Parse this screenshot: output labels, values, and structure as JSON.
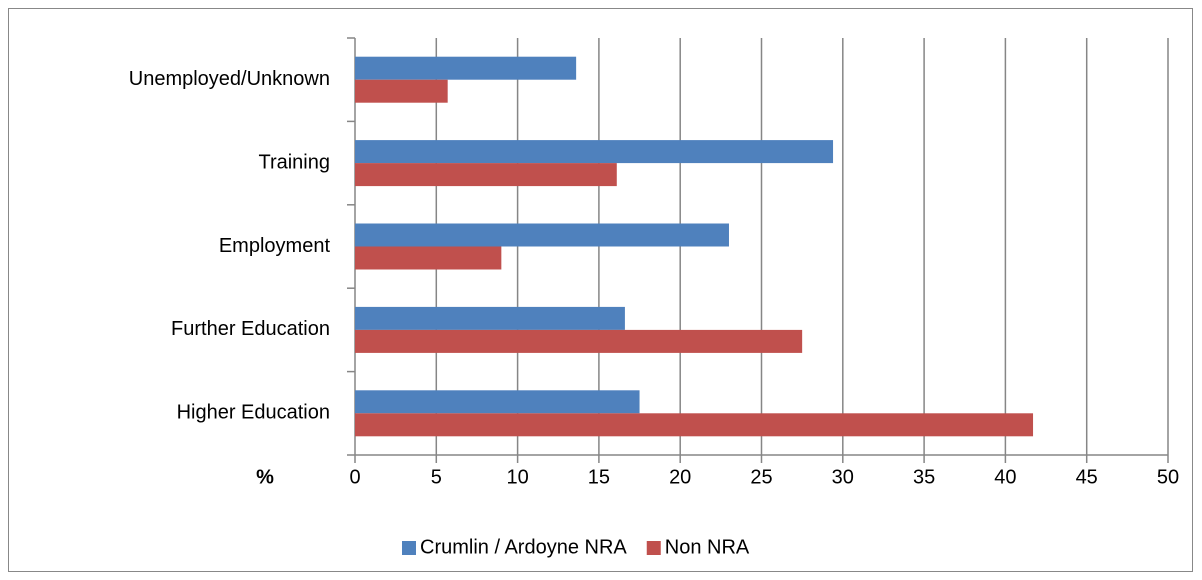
{
  "chart_data": {
    "type": "bar",
    "orientation": "horizontal",
    "categories": [
      "Unemployed/Unknown",
      "Training",
      "Employment",
      "Further Education",
      "Higher Education"
    ],
    "series": [
      {
        "name": "Crumlin / Ardoyne NRA",
        "color": "#4f81bd",
        "values": [
          13.6,
          29.4,
          23.0,
          16.6,
          17.5
        ]
      },
      {
        "name": "Non NRA",
        "color": "#c0504d",
        "values": [
          5.7,
          16.1,
          9.0,
          27.5,
          41.7
        ]
      }
    ],
    "x_label": "%",
    "xlim": [
      0,
      50
    ],
    "xticks": [
      0,
      5,
      10,
      15,
      20,
      25,
      30,
      35,
      40,
      45,
      50
    ],
    "grid": true,
    "legend": "bottom"
  }
}
